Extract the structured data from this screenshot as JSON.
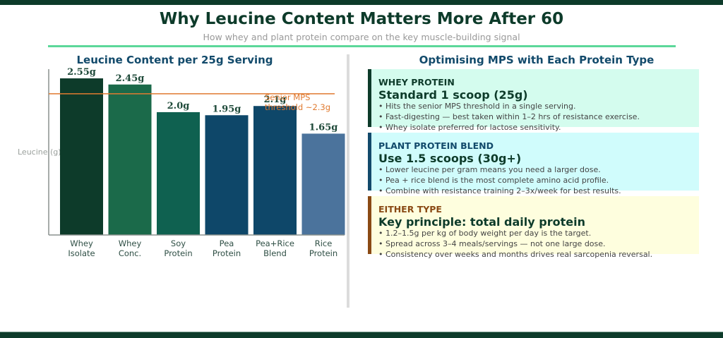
{
  "header": {
    "title": "Why Leucine Content Matters More After 60",
    "subtitle": "How whey and plant protein compare on the key muscle-building signal"
  },
  "colors": {
    "dark_green": "#0d3b2a",
    "accent_green": "#5cd89a",
    "navy": "#124a6b",
    "threshold_orange": "#e07a30"
  },
  "chart_data": {
    "type": "bar",
    "title": "Leucine Content per 25g Serving",
    "xlabel": "",
    "ylabel": "Leucine (g)",
    "categories": [
      "Whey Isolate",
      "Whey Conc.",
      "Soy Protein",
      "Pea Protein",
      "Pea+Rice Blend",
      "Rice Protein"
    ],
    "category_lines": [
      [
        "Whey",
        "Isolate"
      ],
      [
        "Whey",
        "Conc."
      ],
      [
        "Soy",
        "Protein"
      ],
      [
        "Pea",
        "Protein"
      ],
      [
        "Pea+Rice",
        "Blend"
      ],
      [
        "Rice",
        "Protein"
      ]
    ],
    "values": [
      2.55,
      2.45,
      2.0,
      1.95,
      2.1,
      1.65
    ],
    "data_labels": [
      "2.55g",
      "2.45g",
      "2.0g",
      "1.95g",
      "2.1g",
      "1.65g"
    ],
    "bar_colors": [
      "#0d3b2a",
      "#1b6a4a",
      "#0f6150",
      "#0e4769",
      "#0e4769",
      "#4b739c"
    ],
    "ylim": [
      0,
      2.7
    ],
    "grid": false,
    "reference_line": {
      "value": 2.3,
      "label_lines": [
        "Senior MPS",
        "threshold ~2.3g"
      ],
      "color": "#e07a30"
    }
  },
  "right_panel": {
    "title": "Optimising MPS with Each Protein Type",
    "cards": [
      {
        "eyebrow": "WHEY PROTEIN",
        "headline": "Standard 1 scoop (25g)",
        "bullets": [
          "Hits the senior MPS threshold in a single serving.",
          "Fast-digesting — best taken within 1–2 hrs of resistance exercise.",
          "Whey isolate preferred for lactose sensitivity."
        ],
        "stripe_color": "#0d3b2a",
        "bg_color": "#d4fcee",
        "eyebrow_color": "#0d3b2a"
      },
      {
        "eyebrow": "PLANT PROTEIN BLEND",
        "headline": "Use 1.5 scoops (30g+)",
        "bullets": [
          "Lower leucine per gram means you need a larger dose.",
          "Pea + rice blend is the most complete amino acid profile.",
          "Combine with resistance training 2–3x/week for best results."
        ],
        "stripe_color": "#124a6b",
        "bg_color": "#d0fcfc",
        "eyebrow_color": "#124a6b"
      },
      {
        "eyebrow": "EITHER TYPE",
        "headline": "Key principle: total daily protein",
        "bullets": [
          "1.2–1.5g per kg of body weight per day is the target.",
          "Spread across 3–4 meals/servings — not one large dose.",
          "Consistency over weeks and months drives real sarcopenia reversal."
        ],
        "stripe_color": "#8a4a14",
        "bg_color": "#fefede",
        "eyebrow_color": "#8a4a14"
      }
    ]
  }
}
